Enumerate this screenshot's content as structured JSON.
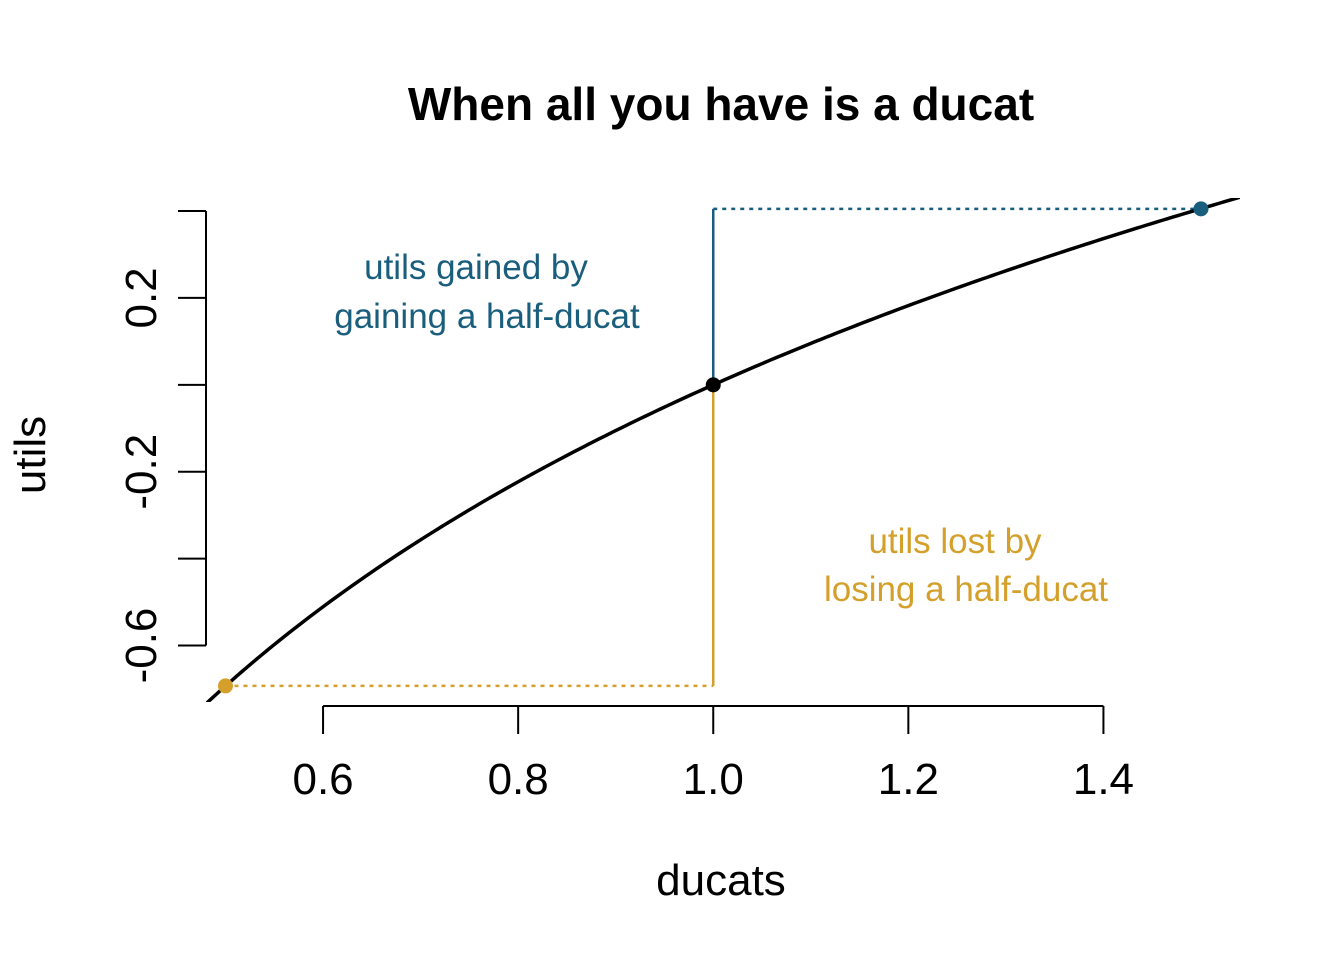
{
  "chart_data": {
    "type": "line",
    "title": "When all you have is a ducat",
    "xlabel": "ducats",
    "ylabel": "utils",
    "xlim": [
      0.48,
      1.54
    ],
    "ylim": [
      -0.73,
      0.43
    ],
    "x_ticks": [
      0.6,
      0.8,
      1.0,
      1.2,
      1.4
    ],
    "x_tick_labels": [
      "0.6",
      "0.8",
      "1.0",
      "1.2",
      "1.4"
    ],
    "y_ticks": [
      -0.6,
      -0.4,
      -0.2,
      0.0,
      0.2,
      0.4
    ],
    "y_tick_labels": [
      "-0.6",
      "",
      "-0.2",
      "",
      "0.2",
      ""
    ],
    "curve": {
      "function": "ln(x)",
      "x_range": [
        0.48,
        1.54
      ],
      "color": "#000000"
    },
    "points": [
      {
        "x": 0.5,
        "y": -0.693,
        "color": "#D4A02B"
      },
      {
        "x": 1.0,
        "y": 0.0,
        "color": "#000000"
      },
      {
        "x": 1.5,
        "y": 0.405,
        "color": "#1A5E7E"
      }
    ],
    "gain_color": "#1A5E7E",
    "loss_color": "#D4A02B",
    "annotations": {
      "gain_line1": "utils gained by",
      "gain_line2": "gaining a half-ducat",
      "loss_line1": "utils lost by",
      "loss_line2": "losing a half-ducat"
    }
  }
}
